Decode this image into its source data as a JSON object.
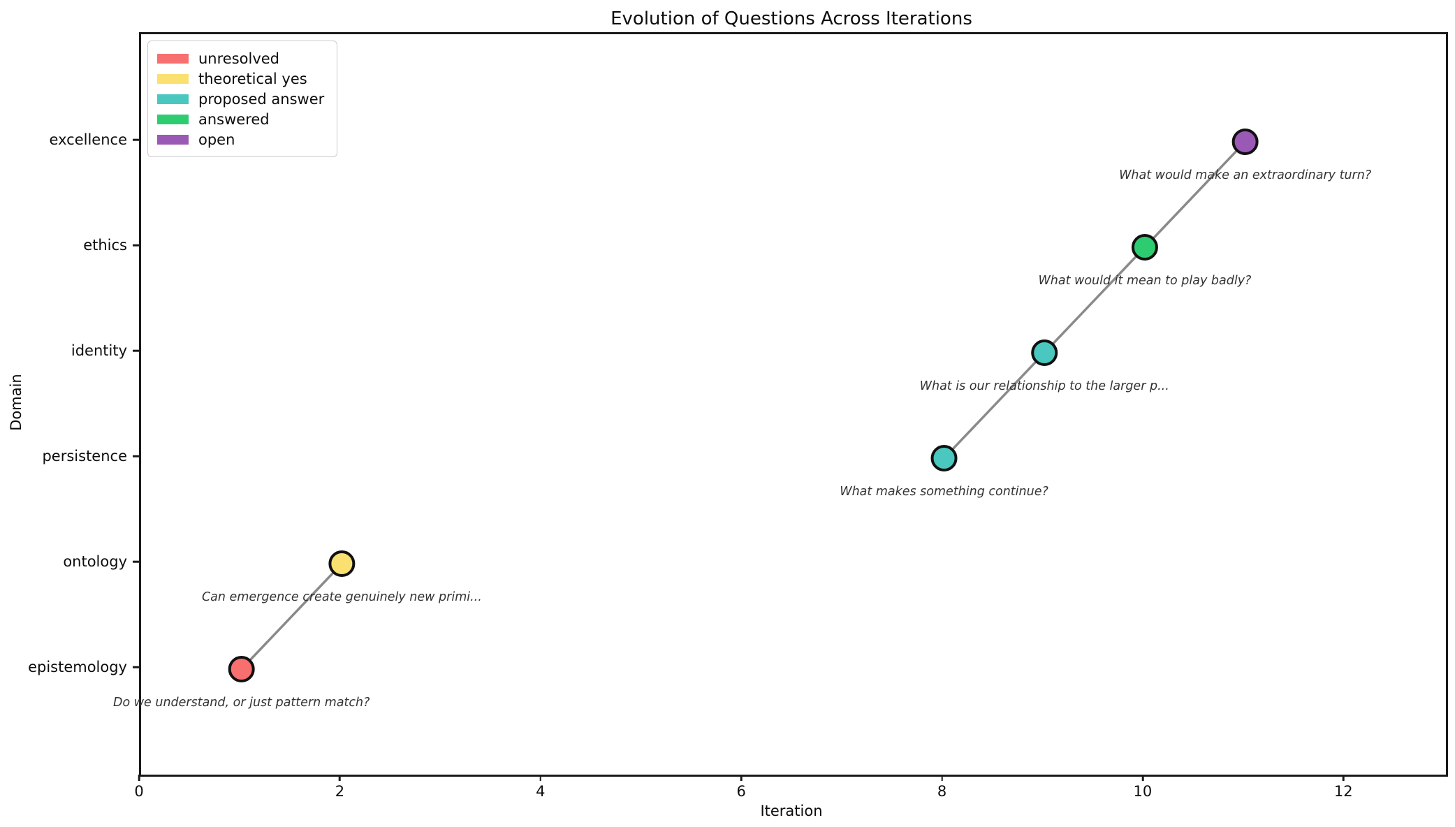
{
  "figure": {
    "background": "#ffffff"
  },
  "chart_data": {
    "type": "scatter",
    "title": "Evolution of Questions Across Iterations",
    "xlabel": "Iteration",
    "ylabel": "Domain",
    "xlim": [
      0,
      13
    ],
    "xticks": [
      0,
      2,
      4,
      6,
      8,
      10,
      12
    ],
    "y_categories": [
      "epistemology",
      "ontology",
      "persistence",
      "identity",
      "ethics",
      "excellence"
    ],
    "grid": false,
    "legend": {
      "position": "upper-left",
      "items": [
        {
          "label": "unresolved",
          "color": "#F86F6F"
        },
        {
          "label": "theoretical yes",
          "color": "#F9E071"
        },
        {
          "label": "proposed answer",
          "color": "#4AC8BF"
        },
        {
          "label": "answered",
          "color": "#2ECC71"
        },
        {
          "label": "open",
          "color": "#9B59B6"
        }
      ]
    },
    "line": {
      "color": "#8a8a8a",
      "width": 3.5,
      "connected_runs": [
        [
          1,
          2
        ],
        [
          8,
          9,
          10,
          11
        ]
      ]
    },
    "marker": {
      "radius": 17,
      "edge_color": "#111111",
      "edge_width": 4
    },
    "points": [
      {
        "x": 1,
        "domain": "epistemology",
        "status": "unresolved",
        "annotation": "Do we understand, or just pattern match?"
      },
      {
        "x": 2,
        "domain": "ontology",
        "status": "theoretical yes",
        "annotation": "Can emergence create genuinely new primi..."
      },
      {
        "x": 8,
        "domain": "persistence",
        "status": "proposed answer",
        "annotation": "What makes something continue?"
      },
      {
        "x": 9,
        "domain": "identity",
        "status": "proposed answer",
        "annotation": "What is our relationship to the larger p..."
      },
      {
        "x": 10,
        "domain": "ethics",
        "status": "answered",
        "annotation": "What would it mean to play badly?"
      },
      {
        "x": 11,
        "domain": "excellence",
        "status": "open",
        "annotation": "What would make an extraordinary turn?"
      }
    ],
    "annotation_style": {
      "color": "#333333",
      "italic": true
    }
  }
}
